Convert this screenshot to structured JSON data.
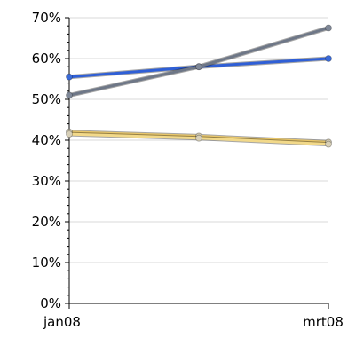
{
  "chart_data": {
    "type": "line",
    "title": "",
    "xlabel": "",
    "ylabel": "",
    "x": [
      "jan08",
      "",
      "mrt08"
    ],
    "x_tick_labels": [
      "jan08",
      "mrt08"
    ],
    "ylim": [
      0,
      70
    ],
    "y_tick_labels": [
      "0%",
      "10%",
      "20%",
      "30%",
      "40%",
      "50%",
      "60%",
      "70%"
    ],
    "y_ticks": [
      0,
      10,
      20,
      30,
      40,
      50,
      60,
      70
    ],
    "y_unit": "%",
    "grid": true,
    "legend": "none",
    "series": [
      {
        "values": [
          55.5,
          58,
          60
        ],
        "color": "#2f5fd6",
        "marker": "#3a6ad8"
      },
      {
        "values": [
          51,
          58,
          67.5
        ],
        "color": "#6e7787",
        "marker": "#7f8898"
      },
      {
        "values": [
          42,
          41,
          39.5
        ],
        "color": "#e8c66a",
        "marker": "#cfc7ae"
      },
      {
        "values": [
          41.5,
          40.5,
          39
        ],
        "color": "#f2d98a",
        "marker": "#d8d0b8"
      }
    ],
    "colors": {
      "gridline": "#d8d8d8",
      "axis": "#000000",
      "background": "#ffffff"
    }
  }
}
